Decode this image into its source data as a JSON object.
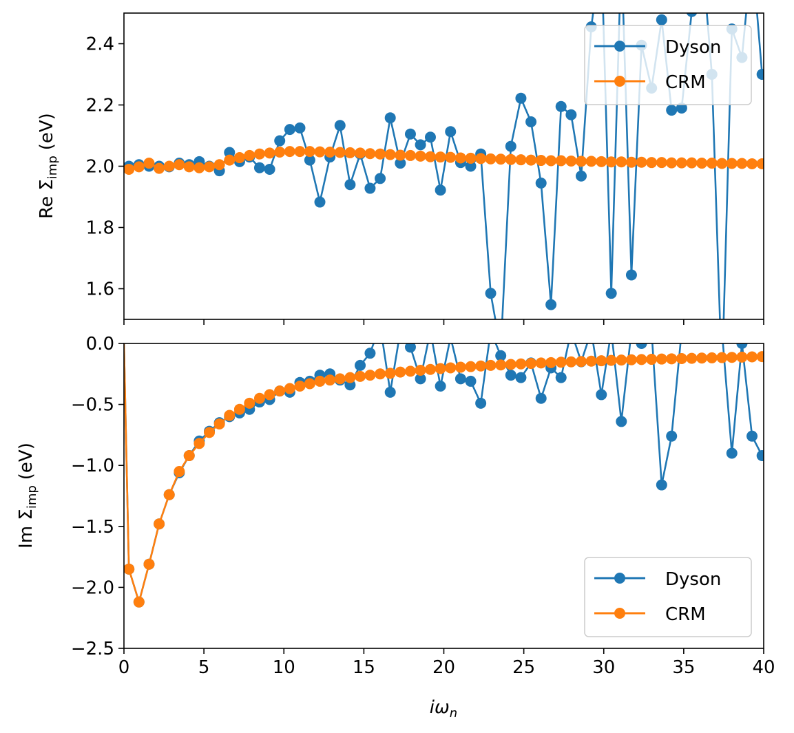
{
  "colors": {
    "dyson": "#1f77b4",
    "crm": "#ff7f0e"
  },
  "chart_data": [
    {
      "type": "line",
      "panel": "top",
      "ylabel": "Re Σ",
      "ylabel_sub": "imp",
      "ylabel_unit": "(eV)",
      "xlim": [
        0,
        40
      ],
      "ylim": [
        1.5,
        2.5
      ],
      "yticks": [
        1.6,
        1.8,
        2.0,
        2.2,
        2.4
      ],
      "ytick_labels": [
        "1.6",
        "1.8",
        "2.0",
        "2.2",
        "2.4"
      ],
      "xticks": [
        0,
        5,
        10,
        15,
        20,
        25,
        30,
        35,
        40
      ],
      "grid": false,
      "legend_position": "top-right",
      "series": [
        {
          "name": "Dyson",
          "x": [
            0.31,
            0.94,
            1.57,
            2.2,
            2.83,
            3.46,
            4.08,
            4.71,
            5.34,
            5.97,
            6.6,
            7.23,
            7.85,
            8.48,
            9.11,
            9.74,
            10.37,
            11.0,
            11.62,
            12.25,
            12.88,
            13.51,
            14.14,
            14.77,
            15.39,
            16.02,
            16.65,
            17.28,
            17.91,
            18.54,
            19.16,
            19.79,
            20.42,
            21.05,
            21.68,
            22.31,
            22.93,
            23.56,
            24.19,
            24.82,
            25.45,
            26.08,
            26.7,
            27.33,
            27.96,
            28.59,
            29.22,
            29.85,
            30.47,
            31.1,
            31.73,
            32.36,
            32.99,
            33.62,
            34.24,
            34.87,
            35.5,
            36.13,
            36.76,
            37.39,
            38.01,
            38.64,
            39.27,
            39.9
          ],
          "values": [
            2.0,
            2.005,
            2.0,
            2.0,
            1.998,
            2.01,
            2.005,
            2.015,
            2.0,
            1.985,
            2.045,
            2.015,
            2.03,
            1.995,
            1.99,
            2.083,
            2.12,
            2.125,
            2.02,
            1.883,
            2.03,
            2.133,
            1.94,
            2.04,
            1.928,
            1.96,
            2.158,
            2.01,
            2.105,
            2.07,
            2.095,
            1.922,
            2.113,
            2.012,
            2.0,
            2.04,
            1.585,
            1.4,
            2.065,
            2.222,
            2.145,
            1.945,
            1.548,
            2.195,
            2.168,
            1.968,
            2.455,
            2.7,
            1.585,
            2.7,
            1.645,
            2.395,
            2.255,
            2.478,
            2.183,
            2.19,
            2.505,
            2.7,
            2.3,
            1.3,
            2.448,
            2.355,
            2.7,
            2.3
          ]
        },
        {
          "name": "CRM",
          "x": [
            0.31,
            0.94,
            1.57,
            2.2,
            2.83,
            3.46,
            4.08,
            4.71,
            5.34,
            5.97,
            6.6,
            7.23,
            7.85,
            8.48,
            9.11,
            9.74,
            10.37,
            11.0,
            11.62,
            12.25,
            12.88,
            13.51,
            14.14,
            14.77,
            15.39,
            16.02,
            16.65,
            17.28,
            17.91,
            18.54,
            19.16,
            19.79,
            20.42,
            21.05,
            21.68,
            22.31,
            22.93,
            23.56,
            24.19,
            24.82,
            25.45,
            26.08,
            26.7,
            27.33,
            27.96,
            28.59,
            29.22,
            29.85,
            30.47,
            31.1,
            31.73,
            32.36,
            32.99,
            33.62,
            34.24,
            34.87,
            35.5,
            36.13,
            36.76,
            37.39,
            38.01,
            38.64,
            39.27,
            39.9
          ],
          "values": [
            1.99,
            1.998,
            2.01,
            1.993,
            2.0,
            2.005,
            1.998,
            1.995,
            1.998,
            2.005,
            2.02,
            2.028,
            2.035,
            2.04,
            2.043,
            2.046,
            2.048,
            2.048,
            2.048,
            2.047,
            2.046,
            2.045,
            2.044,
            2.043,
            2.041,
            2.04,
            2.038,
            2.036,
            2.035,
            2.033,
            2.031,
            2.03,
            2.029,
            2.027,
            2.026,
            2.025,
            2.024,
            2.023,
            2.022,
            2.021,
            2.02,
            2.019,
            2.018,
            2.018,
            2.017,
            2.016,
            2.016,
            2.015,
            2.014,
            2.014,
            2.013,
            2.013,
            2.012,
            2.012,
            2.011,
            2.011,
            2.011,
            2.01,
            2.01,
            2.009,
            2.009,
            2.009,
            2.008,
            2.008
          ]
        }
      ]
    },
    {
      "type": "line",
      "panel": "bottom",
      "xlabel": "iω",
      "xlabel_sub": "n",
      "ylabel": "Im Σ",
      "ylabel_sub": "imp",
      "ylabel_unit": "(eV)",
      "xlim": [
        0,
        40
      ],
      "ylim": [
        -2.5,
        0.0
      ],
      "yticks": [
        -2.5,
        -2.0,
        -1.5,
        -1.0,
        -0.5,
        0.0
      ],
      "ytick_labels": [
        "−2.5",
        "−2.0",
        "−1.5",
        "−1.0",
        "−0.5",
        "0.0"
      ],
      "xticks": [
        0,
        5,
        10,
        15,
        20,
        25,
        30,
        35,
        40
      ],
      "xtick_labels": [
        "0",
        "5",
        "10",
        "15",
        "20",
        "25",
        "30",
        "35",
        "40"
      ],
      "grid": false,
      "legend_position": "bottom-right",
      "series": [
        {
          "name": "Dyson",
          "x": [
            0.0,
            0.31,
            0.94,
            1.57,
            2.2,
            2.83,
            3.46,
            4.08,
            4.71,
            5.34,
            5.97,
            6.6,
            7.23,
            7.85,
            8.48,
            9.11,
            9.74,
            10.37,
            11.0,
            11.62,
            12.25,
            12.88,
            13.51,
            14.14,
            14.77,
            15.39,
            16.02,
            16.65,
            17.28,
            17.91,
            18.54,
            19.16,
            19.79,
            20.42,
            21.05,
            21.68,
            22.31,
            22.93,
            23.56,
            24.19,
            24.82,
            25.45,
            26.08,
            26.7,
            27.33,
            27.96,
            28.59,
            29.22,
            29.85,
            30.47,
            31.1,
            31.73,
            32.36,
            32.99,
            33.62,
            34.24,
            34.87,
            35.5,
            36.13,
            36.76,
            37.39,
            38.01,
            38.64,
            39.27,
            39.9
          ],
          "values": [
            0.0,
            -1.85,
            -2.12,
            -1.81,
            -1.48,
            -1.24,
            -1.06,
            -0.92,
            -0.8,
            -0.72,
            -0.65,
            -0.6,
            -0.57,
            -0.54,
            -0.48,
            -0.46,
            -0.39,
            -0.4,
            -0.32,
            -0.31,
            -0.26,
            -0.25,
            -0.3,
            -0.34,
            -0.18,
            -0.08,
            0.15,
            -0.4,
            0.1,
            -0.03,
            -0.29,
            0.1,
            -0.35,
            0.05,
            -0.29,
            -0.31,
            -0.49,
            0.1,
            -0.1,
            -0.26,
            -0.28,
            -0.16,
            -0.45,
            -0.2,
            -0.28,
            0.1,
            -0.15,
            0.1,
            -0.42,
            0.1,
            -0.64,
            0.1,
            0.0,
            0.1,
            -1.16,
            -0.76,
            0.1,
            0.1,
            0.1,
            0.1,
            0.1,
            -0.9,
            0.0,
            -0.76,
            -0.92
          ]
        },
        {
          "name": "CRM",
          "x": [
            0.0,
            0.31,
            0.94,
            1.57,
            2.2,
            2.83,
            3.46,
            4.08,
            4.71,
            5.34,
            5.97,
            6.6,
            7.23,
            7.85,
            8.48,
            9.11,
            9.74,
            10.37,
            11.0,
            11.62,
            12.25,
            12.88,
            13.51,
            14.14,
            14.77,
            15.39,
            16.02,
            16.65,
            17.28,
            17.91,
            18.54,
            19.16,
            19.79,
            20.42,
            21.05,
            21.68,
            22.31,
            22.93,
            23.56,
            24.19,
            24.82,
            25.45,
            26.08,
            26.7,
            27.33,
            27.96,
            28.59,
            29.22,
            29.85,
            30.47,
            31.1,
            31.73,
            32.36,
            32.99,
            33.62,
            34.24,
            34.87,
            35.5,
            36.13,
            36.76,
            37.39,
            38.01,
            38.64,
            39.27,
            39.9
          ],
          "values": [
            0.0,
            -1.85,
            -2.12,
            -1.81,
            -1.48,
            -1.24,
            -1.05,
            -0.92,
            -0.82,
            -0.73,
            -0.66,
            -0.59,
            -0.54,
            -0.49,
            -0.45,
            -0.42,
            -0.39,
            -0.37,
            -0.35,
            -0.33,
            -0.31,
            -0.3,
            -0.29,
            -0.28,
            -0.27,
            -0.26,
            -0.25,
            -0.245,
            -0.235,
            -0.228,
            -0.22,
            -0.213,
            -0.206,
            -0.2,
            -0.195,
            -0.19,
            -0.185,
            -0.18,
            -0.176,
            -0.172,
            -0.168,
            -0.164,
            -0.16,
            -0.157,
            -0.154,
            -0.151,
            -0.148,
            -0.145,
            -0.142,
            -0.139,
            -0.136,
            -0.134,
            -0.132,
            -0.13,
            -0.128,
            -0.126,
            -0.124,
            -0.122,
            -0.12,
            -0.118,
            -0.116,
            -0.114,
            -0.112,
            -0.11,
            -0.108
          ]
        }
      ]
    }
  ]
}
